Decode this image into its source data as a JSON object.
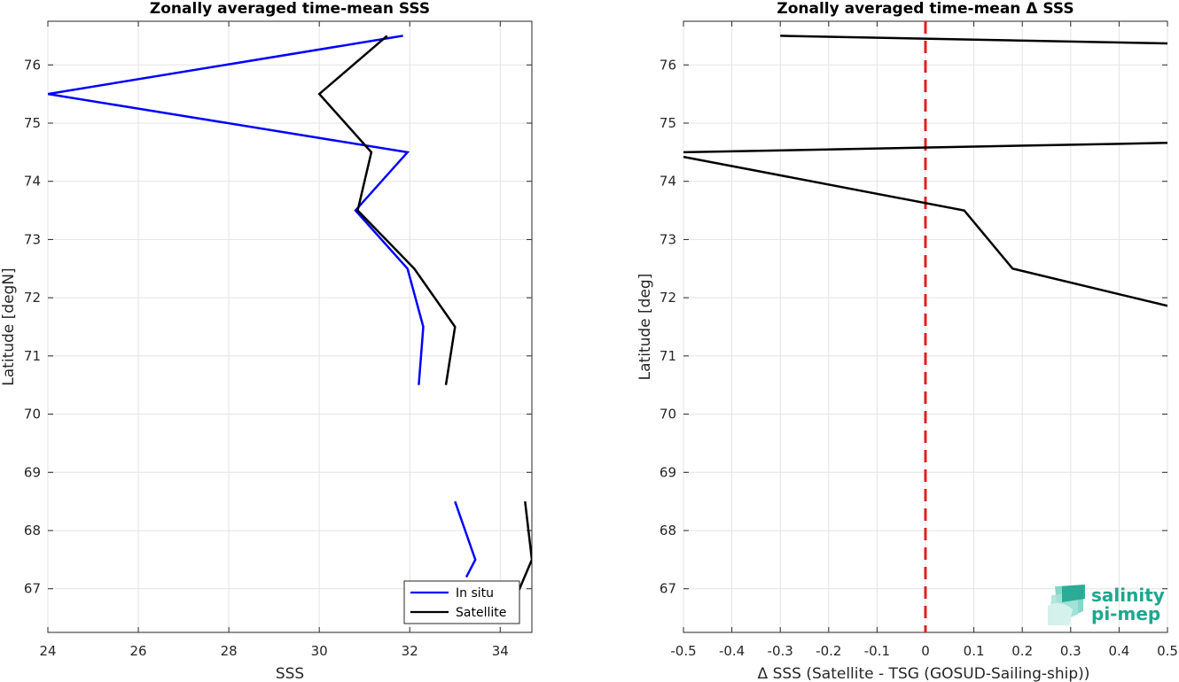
{
  "chart_data": [
    {
      "type": "line",
      "title": "Zonally averaged time-mean SSS",
      "xlabel": "SSS",
      "ylabel": "Latitude [degN]",
      "xlim": [
        24,
        34.7
      ],
      "ylim": [
        66.25,
        76.75
      ],
      "xticks": [
        "24",
        "26",
        "28",
        "30",
        "32",
        "34"
      ],
      "yticks": [
        "67",
        "68",
        "69",
        "70",
        "71",
        "72",
        "73",
        "74",
        "75",
        "76"
      ],
      "grid": true,
      "legend_position": "bottom-right",
      "series": [
        {
          "name": "In situ",
          "color": "#0000ff",
          "segments": [
            {
              "x": [
                31.85,
                24.0,
                31.95,
                30.8,
                31.95,
                32.3,
                32.2
              ],
              "y": [
                76.5,
                75.5,
                74.5,
                73.5,
                72.5,
                71.5,
                70.5
              ]
            },
            {
              "x": [
                33.0,
                33.45,
                33.25
              ],
              "y": [
                68.5,
                67.5,
                67.2
              ]
            }
          ]
        },
        {
          "name": "Satellite",
          "color": "#000000",
          "segments": [
            {
              "x": [
                31.5,
                30.0,
                31.15,
                30.85,
                32.1,
                33.0,
                32.8
              ],
              "y": [
                76.5,
                75.5,
                74.5,
                73.5,
                72.5,
                71.5,
                70.5
              ]
            },
            {
              "x": [
                34.55,
                34.7,
                34.4
              ],
              "y": [
                68.5,
                67.5,
                66.95
              ]
            }
          ]
        }
      ]
    },
    {
      "type": "line",
      "title": "Zonally averaged time-mean Δ SSS",
      "xlabel": "Δ SSS (Satellite - TSG (GOSUD-Sailing-ship))",
      "ylabel": "Latitude [deg]",
      "xlim": [
        -0.5,
        0.5
      ],
      "ylim": [
        66.25,
        76.75
      ],
      "xticks": [
        "-0.5",
        "-0.4",
        "-0.3",
        "-0.2",
        "-0.1",
        "0",
        "0.1",
        "0.2",
        "0.3",
        "0.4",
        "0.5"
      ],
      "yticks": [
        "67",
        "68",
        "69",
        "70",
        "71",
        "72",
        "73",
        "74",
        "75",
        "76"
      ],
      "grid": true,
      "reference_line": {
        "x": 0,
        "color": "#e02020",
        "style": "dashed"
      },
      "series": [
        {
          "color": "#000000",
          "segments": [
            {
              "x": [
                -0.3,
                0.5
              ],
              "y": [
                76.5,
                76.37
              ]
            },
            {
              "x": [
                -0.5,
                0.5
              ],
              "y": [
                74.5,
                74.66
              ]
            },
            {
              "x": [
                -0.5,
                0.08,
                0.18,
                0.5
              ],
              "y": [
                74.42,
                73.5,
                72.5,
                71.86
              ]
            }
          ]
        }
      ]
    }
  ],
  "logo": {
    "line1": "salinity",
    "line2": "pi-mep"
  }
}
